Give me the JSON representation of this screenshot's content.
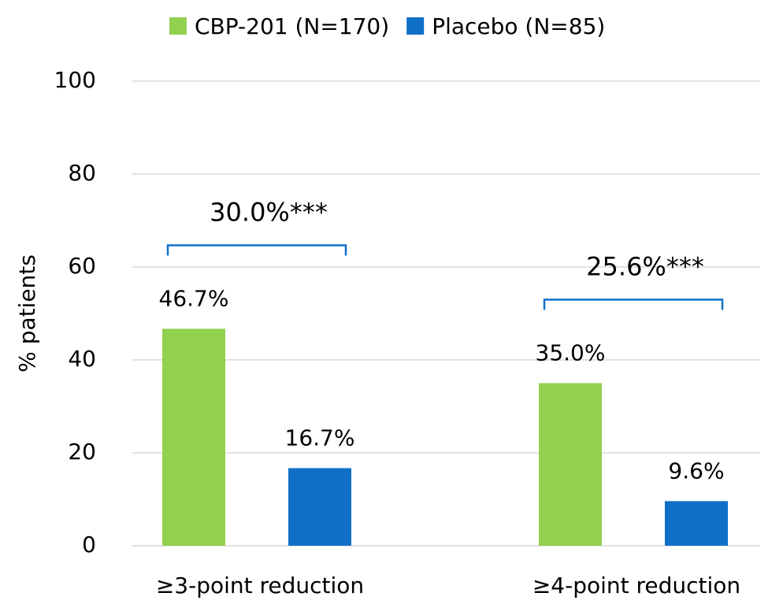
{
  "chart_data": {
    "type": "bar",
    "y_label": "% patients",
    "categories": [
      "≥3-point reduction",
      "≥4-point reduction"
    ],
    "series": [
      {
        "name": "CBP-201 (N=170)",
        "color": "#92d050",
        "values": [
          46.7,
          35.0
        ],
        "value_labels": [
          "46.7%",
          "35.0%"
        ]
      },
      {
        "name": "Placebo (N=85)",
        "color": "#1070c8",
        "values": [
          16.7,
          9.6
        ],
        "value_labels": [
          "16.7%",
          "9.6%"
        ]
      }
    ],
    "annotations": [
      "30.0%***",
      "25.6%***"
    ],
    "bracket_color": "#1070c8",
    "ylim": [
      0,
      100
    ],
    "yticks": [
      0,
      20,
      40,
      60,
      80,
      100
    ],
    "grid": true,
    "legend": "top"
  }
}
